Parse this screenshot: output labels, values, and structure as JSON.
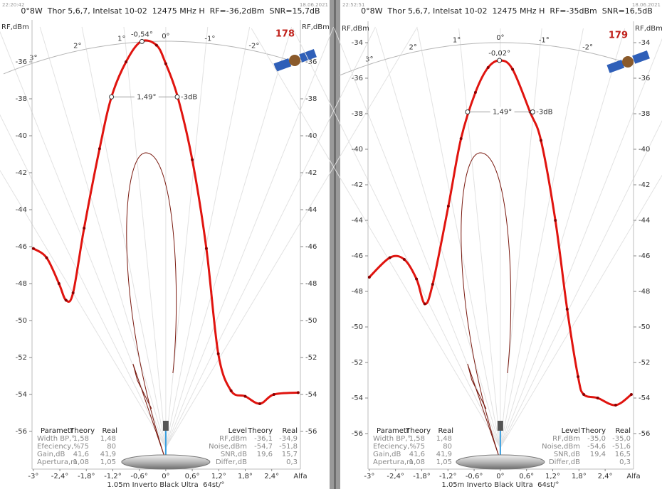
{
  "chart_data": [
    {
      "type": "line",
      "timestamp": "22:20:42",
      "date": "18.06.2021",
      "title": "0°8W  Thor 5,6,7, Intelsat 10-02  12475 MHz H  RF=-36,2dBm  SNR=15,7dB",
      "badge": 178,
      "ylabel": "RF,dBm",
      "xlabel": "Alfa",
      "footer": "1.05m Inverto Black Ultra  64st/°",
      "color": "#e0140f",
      "x": [
        -3.0,
        -2.7,
        -2.42,
        -2.26,
        -2.1,
        -1.85,
        -1.5,
        -1.23,
        -0.9,
        -0.56,
        -0.21,
        0,
        0.27,
        0.6,
        0.92,
        1.19,
        1.48,
        1.8,
        2.13,
        2.45,
        3.0
      ],
      "values": [
        -46.1,
        -46.6,
        -48.0,
        -48.9,
        -48.5,
        -45.0,
        -40.7,
        -37.9,
        -36.0,
        -34.9,
        -35.1,
        -36.1,
        -37.9,
        -41.3,
        -46.1,
        -51.8,
        -53.8,
        -54.1,
        -54.5,
        -54.0,
        -53.9
      ],
      "xlim": [
        -3.03,
        3.05
      ],
      "xticks": [
        {
          "value": -3,
          "label": "-3°"
        },
        {
          "value": -2.4,
          "label": "-2,4°"
        },
        {
          "value": -1.8,
          "label": "-1,8°"
        },
        {
          "value": -1.2,
          "label": "-1,2°"
        },
        {
          "value": -0.6,
          "label": "-0,6°"
        },
        {
          "value": 0,
          "label": "0°"
        },
        {
          "value": 0.6,
          "label": "0,6°"
        },
        {
          "value": 1.2,
          "label": "1,2°"
        },
        {
          "value": 1.8,
          "label": "1,8°"
        },
        {
          "value": 2.4,
          "label": "2,4°"
        }
      ],
      "ylim": [
        -58.04,
        -33.73
      ],
      "yticks": [
        -36,
        -38,
        -40,
        -42,
        -44,
        -46,
        -48,
        -50,
        -52,
        -54,
        -56
      ],
      "arc_labels": [
        {
          "value": 3,
          "label": "3°"
        },
        {
          "value": 2,
          "label": "2°"
        },
        {
          "value": 1,
          "label": "1°"
        },
        {
          "value": 0,
          "label": "0°"
        },
        {
          "value": -1,
          "label": "-1°"
        },
        {
          "value": -2,
          "label": "-2°"
        }
      ],
      "peak": {
        "x": -0.54,
        "y": -34.9,
        "label": "-0,54°"
      },
      "beam": {
        "x": [
          -1.23,
          0.26
        ],
        "y": -37.9,
        "label": "1,49°",
        "level": "-3dB"
      },
      "params": {
        "header": [
          "Parametr",
          "Theory",
          "Real"
        ],
        "rows": [
          [
            "Width BP,°",
            "1,58",
            "1,48"
          ],
          [
            "Efeciency,%",
            "75",
            "80"
          ],
          [
            "Gain,dB",
            "41,6",
            "41,9"
          ],
          [
            "Apertura,m",
            "1,08",
            "1,05"
          ]
        ]
      },
      "levels": {
        "header": [
          "Level",
          "Theory",
          "Real"
        ],
        "rows": [
          [
            "RF,dBm",
            "-36,1",
            "-34,9"
          ],
          [
            "Noise,dBm",
            "-54,7",
            "-51,8"
          ],
          [
            "SNR,dB",
            "19,6",
            "15,7"
          ],
          [
            "Differ,dB",
            null,
            "0,3"
          ]
        ]
      }
    },
    {
      "type": "line",
      "timestamp": "22:52:51",
      "date": "18.06.2021",
      "title": "0°8W  Thor 5,6,7, Intelsat 10-02  12475 MHz H  RF=-35dBm  SNR=16,5dB",
      "badge": 179,
      "ylabel": "RF,dBm",
      "xlabel": "Alfa",
      "footer": "1.05m Inverto Black Ultra  64st/°",
      "color": "#e0140f",
      "x": [
        -3.0,
        -2.53,
        -2.2,
        -1.92,
        -1.73,
        -1.55,
        -1.19,
        -0.9,
        -0.57,
        -0.28,
        0,
        0.28,
        0.68,
        0.93,
        1.26,
        1.53,
        1.78,
        1.91,
        2.23,
        2.64,
        3.0
      ],
      "values": [
        -47.2,
        -46.1,
        -46.2,
        -47.3,
        -48.7,
        -47.6,
        -43.2,
        -39.4,
        -36.8,
        -35.4,
        -35.0,
        -35.5,
        -37.9,
        -39.5,
        -44.0,
        -49.0,
        -52.8,
        -53.8,
        -54.0,
        -54.4,
        -53.8
      ],
      "xlim": [
        -3.03,
        3.05
      ],
      "xticks": [
        {
          "value": -3,
          "label": "-3°"
        },
        {
          "value": -2.4,
          "label": "-2,4°"
        },
        {
          "value": -1.8,
          "label": "-1,8°"
        },
        {
          "value": -1.2,
          "label": "-1,2°"
        },
        {
          "value": -0.6,
          "label": "-0,6°"
        },
        {
          "value": 0,
          "label": "0°"
        },
        {
          "value": 0.6,
          "label": "0,6°"
        },
        {
          "value": 1.2,
          "label": "1,2°"
        },
        {
          "value": 1.8,
          "label": "1,8°"
        },
        {
          "value": 2.4,
          "label": "2,4°"
        }
      ],
      "ylim": [
        -58,
        -32.8
      ],
      "yticks": [
        -34,
        -36,
        -38,
        -40,
        -42,
        -44,
        -46,
        -48,
        -50,
        -52,
        -54,
        -56
      ],
      "arc_labels": [
        {
          "value": 3,
          "label": "3°"
        },
        {
          "value": 2,
          "label": "2°"
        },
        {
          "value": 1,
          "label": "1°"
        },
        {
          "value": 0,
          "label": "0°"
        },
        {
          "value": -1,
          "label": "-1°"
        },
        {
          "value": -2,
          "label": "-2°"
        }
      ],
      "peak": {
        "x": -0.02,
        "y": -35.0,
        "label": "-0,02°"
      },
      "beam": {
        "x": [
          -0.75,
          0.74
        ],
        "y": -37.9,
        "label": "1,49°",
        "level": "-3dB"
      },
      "params": {
        "header": [
          "Parametr",
          "Theory",
          "Real"
        ],
        "rows": [
          [
            "Width BP,°",
            "1,58",
            "1,48"
          ],
          [
            "Efeciency,%",
            "75",
            "80"
          ],
          [
            "Gain,dB",
            "41,6",
            "41,9"
          ],
          [
            "Apertura,m",
            "1,08",
            "1,05"
          ]
        ]
      },
      "levels": {
        "header": [
          "Level",
          "Theory",
          "Real"
        ],
        "rows": [
          [
            "RF,dBm",
            "-35,0",
            "-35,0"
          ],
          [
            "Noise,dBm",
            "-54,6",
            "-51,6"
          ],
          [
            "SNR,dB",
            "19,4",
            "16,5"
          ],
          [
            "Differ,dB",
            null,
            "0,3"
          ]
        ]
      }
    }
  ]
}
